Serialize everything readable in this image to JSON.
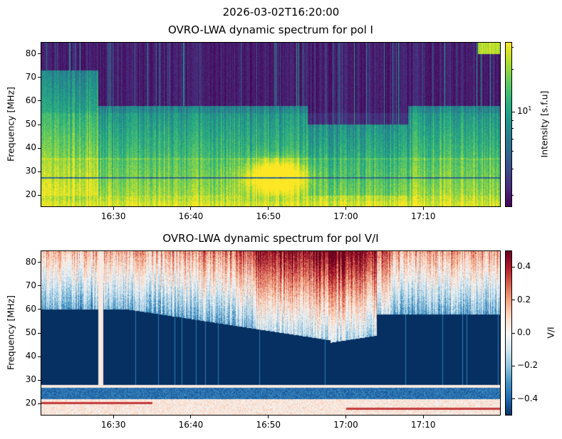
{
  "suptitle": "2026-03-02T16:20:00",
  "chart_data": [
    {
      "type": "heatmap",
      "title": "OVRO-LWA dynamic spectrum for pol I",
      "xlabel": "",
      "ylabel": "Frequency [MHz]",
      "xlim_minutes_after_1620": [
        0.6,
        60
      ],
      "ylim": [
        15,
        85
      ],
      "xticks": [
        {
          "v": 10,
          "label": "16:30"
        },
        {
          "v": 20,
          "label": "16:40"
        },
        {
          "v": 30,
          "label": "16:50"
        },
        {
          "v": 40,
          "label": "17:00"
        },
        {
          "v": 50,
          "label": "17:10"
        }
      ],
      "yticks": [
        20,
        30,
        40,
        50,
        60,
        70,
        80
      ],
      "colormap": "viridis",
      "scale": "log",
      "colorbar": {
        "label": "Intensity [s.f.u]",
        "ticks": [
          {
            "label": "10",
            "exp": "1"
          }
        ]
      },
      "features": "purple low intensity above ~55 MHz, green/teal below, bright yellow burst near 16:50 at 20-35 MHz, bright band 15-20 MHz"
    },
    {
      "type": "heatmap",
      "title": "OVRO-LWA dynamic spectrum for pol V/I",
      "xlabel": "",
      "ylabel": "Frequency [MHz]",
      "xlim_minutes_after_1620": [
        0.6,
        60
      ],
      "ylim": [
        15,
        85
      ],
      "xticks": [
        {
          "v": 10,
          "label": "16:30"
        },
        {
          "v": 20,
          "label": "16:40"
        },
        {
          "v": 30,
          "label": "16:50"
        },
        {
          "v": 40,
          "label": "17:00"
        },
        {
          "v": 50,
          "label": "17:10"
        }
      ],
      "yticks": [
        20,
        30,
        40,
        50,
        60,
        70,
        80
      ],
      "colormap": "RdBu_r",
      "vlim": [
        -0.5,
        0.5
      ],
      "colorbar": {
        "label": "V/I",
        "ticks": [
          {
            "v": 0.4,
            "label": "0.4"
          },
          {
            "v": 0.2,
            "label": "0.2"
          },
          {
            "v": 0,
            "label": "0.0"
          },
          {
            "v": -0.2,
            "label": "−0.2"
          },
          {
            "v": -0.4,
            "label": "−0.4"
          }
        ]
      },
      "features": "saturated -0.5 below ~60 MHz (boundary dips to ~45 MHz near 16:58), lighter values above, positive streaks below 22 MHz"
    }
  ]
}
